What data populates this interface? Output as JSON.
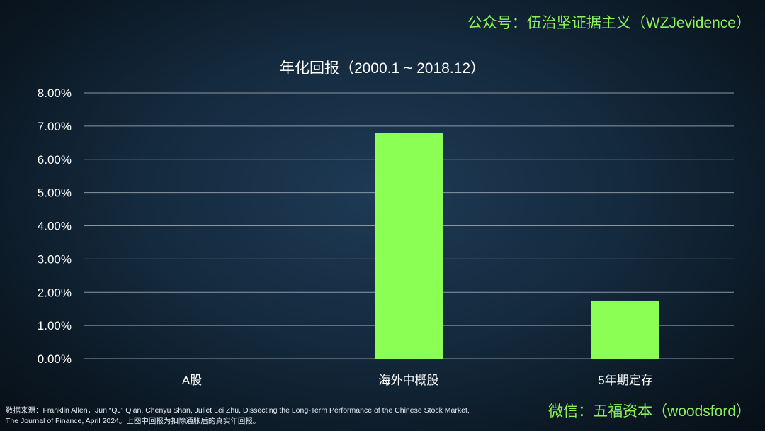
{
  "header": {
    "wechat_account": "公众号：伍治坚证据主义（WZJevidence）"
  },
  "footer": {
    "wechat_id": "微信：五福资本（woodsford）",
    "source_line1": "数据来源：Franklin Allen，Jun “QJ” Qian, Chenyu Shan, Juliet Lei Zhu, Dissecting the Long-Term Performance of the Chinese Stock Market,",
    "source_line2": "The Journal of Finance, April 2024。上图中回报为扣除通胀后的真实年回报。"
  },
  "colors": {
    "bar": "#8cff55",
    "grid": "#8a97a3",
    "accent_text": "#8cf25a"
  },
  "chart_data": {
    "type": "bar",
    "title": "年化回报（2000.1 ~ 2018.12）",
    "categories": [
      "A股",
      "海外中概股",
      "5年期定存"
    ],
    "values": [
      0.0,
      6.8,
      1.75
    ],
    "ylim": [
      0,
      8
    ],
    "yticks": [
      "0.00%",
      "1.00%",
      "2.00%",
      "3.00%",
      "4.00%",
      "5.00%",
      "6.00%",
      "7.00%",
      "8.00%"
    ],
    "xlabel": "",
    "ylabel": "",
    "grid": true,
    "legend": "none"
  }
}
